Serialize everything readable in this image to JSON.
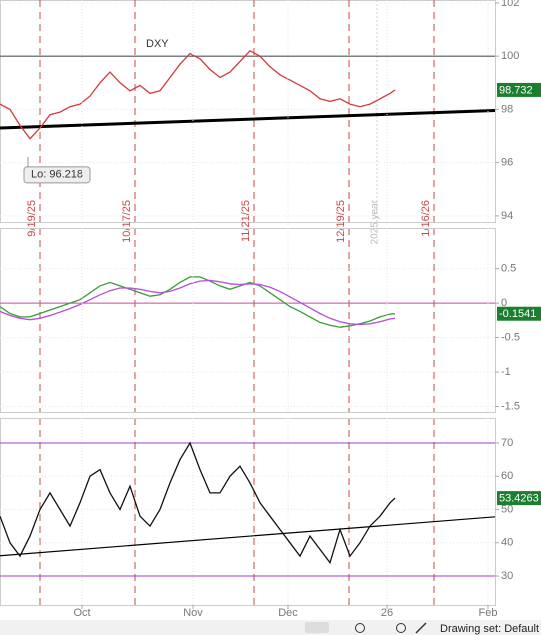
{
  "chart_data": [
    {
      "type": "line",
      "title": "DXY",
      "x": [
        0,
        2,
        4,
        6,
        8,
        10,
        12,
        14,
        16,
        18,
        20,
        22,
        24,
        26,
        28,
        30,
        32,
        34,
        36,
        38,
        40,
        42,
        44,
        46,
        48,
        50,
        52,
        54,
        56,
        58,
        60,
        62,
        64,
        66,
        68,
        70,
        72,
        74,
        76,
        78,
        79
      ],
      "series": [
        {
          "color": "#d33a3a",
          "values": [
            98.2,
            98.0,
            97.4,
            96.9,
            97.3,
            97.8,
            97.9,
            98.1,
            98.2,
            98.5,
            99.0,
            99.4,
            99.0,
            98.7,
            98.9,
            98.6,
            98.7,
            99.2,
            99.7,
            100.1,
            99.9,
            99.5,
            99.2,
            99.4,
            99.8,
            100.2,
            100.0,
            99.6,
            99.3,
            99.1,
            98.9,
            98.7,
            98.4,
            98.3,
            98.4,
            98.2,
            98.1,
            98.2,
            98.4,
            98.6,
            98.732
          ]
        }
      ],
      "last_value": 98.732,
      "low": {
        "x": 5.6,
        "value": 96.218,
        "label": "Lo: 96.218"
      },
      "reference_line": 100,
      "trendline": {
        "x": [
          0,
          99
        ],
        "y": [
          97.3,
          97.96
        ]
      },
      "markers": [
        {
          "x": 8,
          "label": "9/19/25"
        },
        {
          "x": 27,
          "label": "10/17/25"
        },
        {
          "x": 50.8,
          "label": "11/21/25"
        },
        {
          "x": 69.8,
          "label": "12/19/25"
        },
        {
          "x": 86.8,
          "label": "1/16/26"
        }
      ],
      "year_marker": {
        "x": 75.4,
        "label": "2025 year"
      },
      "xlim": [
        0,
        99
      ],
      "ylim": [
        93.77,
        102.11
      ],
      "yticks": [
        94,
        96,
        98,
        100,
        102
      ]
    },
    {
      "type": "line",
      "x": [
        0,
        2,
        4,
        6,
        8,
        10,
        12,
        14,
        16,
        18,
        20,
        22,
        24,
        26,
        28,
        30,
        32,
        34,
        36,
        38,
        40,
        42,
        44,
        46,
        48,
        50,
        52,
        54,
        56,
        58,
        60,
        62,
        64,
        66,
        68,
        70,
        72,
        74,
        76,
        78,
        79
      ],
      "series": [
        {
          "color": "#3a9a3a",
          "values": [
            -0.05,
            -0.15,
            -0.2,
            -0.2,
            -0.15,
            -0.1,
            -0.05,
            0.0,
            0.05,
            0.15,
            0.25,
            0.3,
            0.25,
            0.2,
            0.15,
            0.1,
            0.12,
            0.2,
            0.3,
            0.38,
            0.38,
            0.32,
            0.25,
            0.2,
            0.25,
            0.3,
            0.25,
            0.15,
            0.05,
            -0.05,
            -0.12,
            -0.2,
            -0.28,
            -0.32,
            -0.35,
            -0.33,
            -0.3,
            -0.26,
            -0.2,
            -0.16,
            -0.1541
          ]
        },
        {
          "color": "#b44fd6",
          "values": [
            -0.12,
            -0.18,
            -0.22,
            -0.24,
            -0.22,
            -0.18,
            -0.13,
            -0.08,
            -0.02,
            0.05,
            0.12,
            0.18,
            0.22,
            0.22,
            0.2,
            0.17,
            0.15,
            0.17,
            0.22,
            0.28,
            0.32,
            0.33,
            0.31,
            0.28,
            0.27,
            0.28,
            0.27,
            0.23,
            0.17,
            0.09,
            0.01,
            -0.07,
            -0.15,
            -0.22,
            -0.27,
            -0.3,
            -0.31,
            -0.3,
            -0.27,
            -0.23,
            -0.22
          ]
        }
      ],
      "last_value": -0.1541,
      "xlim": [
        0,
        99
      ],
      "ylim": [
        -1.58,
        1.09
      ],
      "yticks": [
        0.5,
        0,
        -0.5,
        -1,
        -1.5
      ]
    },
    {
      "type": "line",
      "x": [
        0,
        2,
        4,
        6,
        8,
        10,
        12,
        14,
        16,
        18,
        20,
        22,
        24,
        26,
        28,
        30,
        32,
        34,
        36,
        38,
        40,
        42,
        44,
        46,
        48,
        50,
        52,
        54,
        56,
        58,
        60,
        62,
        64,
        66,
        68,
        70,
        72,
        74,
        76,
        78,
        79
      ],
      "series": [
        {
          "color": "#111111",
          "values": [
            48,
            40,
            36,
            42,
            50,
            55,
            50,
            45,
            52,
            60,
            62,
            55,
            50,
            57,
            48,
            45,
            50,
            58,
            65,
            70,
            62,
            55,
            55,
            60,
            63,
            58,
            52,
            48,
            44,
            40,
            36,
            42,
            38,
            34,
            44,
            36,
            40,
            45,
            48,
            52,
            53.4263
          ]
        }
      ],
      "last_value": 53.4263,
      "bands": [
        70,
        30
      ],
      "trendline": {
        "x": [
          0,
          99
        ],
        "y": [
          36.1,
          47.8
        ]
      },
      "xlim": [
        0,
        99
      ],
      "ylim": [
        21.3,
        77.5
      ],
      "yticks": [
        30,
        40,
        50,
        60,
        70
      ],
      "xticks": [
        {
          "value": 16.4,
          "label": "Oct"
        },
        {
          "value": 38.6,
          "label": "Nov"
        },
        {
          "value": 57.6,
          "label": "Dec"
        },
        {
          "value": 77.4,
          "label": "26"
        },
        {
          "value": 97.6,
          "label": "Feb"
        }
      ]
    }
  ],
  "toolbar": {
    "label": "Drawing set: Default"
  }
}
